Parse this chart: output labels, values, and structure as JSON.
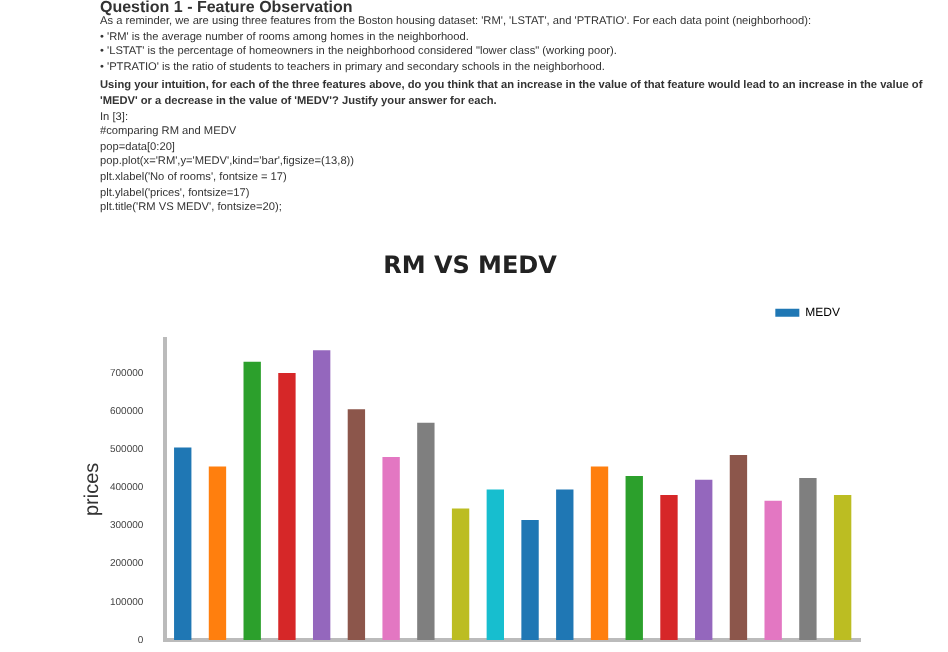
{
  "chart_data": {
    "type": "bar",
    "title": "RM VS MEDV",
    "ylabel": "prices",
    "annotations": [
      "Question 1 - Feature Observation",
      "As a reminder, we are using three features from the Boston housing dataset: 'RM', 'LSTAT', and 'PTRATIO'. For each data point (neighborhood):",
      "• 'RM' is the average number of rooms among homes in the neighborhood.",
      "• 'LSTAT' is the percentage of homeowners in the neighborhood considered \"lower class\" (working poor).",
      "• 'PTRATIO' is the ratio of students to teachers in primary and secondary schools in the neighborhood.",
      "Using your intuition, for each of the three features above, do you think that an increase in the value of that feature would lead to an increase in the value of 'MEDV' or a decrease in the value of 'MEDV'? Justify your answer for each.",
      "In [3]:",
      "#comparing RM and MEDV",
      "pop=data[0:20]",
      "pop.plot(x='RM',y='MEDV',kind='bar',figsize=(13,8))",
      "plt.xlabel('No of rooms', fontsize = 17)",
      "plt.ylabel('prices', fontsize=17)",
      "plt.title('RM VS MEDV', fontsize=20);"
    ],
    "categories": [
      null,
      null,
      null,
      null,
      null,
      null,
      null,
      null,
      null,
      null,
      null,
      null,
      null,
      null,
      null,
      null,
      null,
      null,
      null,
      null
    ],
    "series": [
      {
        "name": "MEDV",
        "color": "#1f77b4",
        "colors": [
          "#1f77b4",
          "#ff7f0e",
          "#2ca02c",
          "#d62728",
          "#9467bd",
          "#8c564b",
          "#e377c2",
          "#7f7f7f",
          "#bcbd22",
          "#17becf",
          "#1f77b4",
          "#1f77b4",
          "#ff7f0e",
          "#2ca02c",
          "#d62728",
          "#9467bd",
          "#8c564b",
          "#e377c2",
          "#7f7f7f",
          "#bcbd22"
        ],
        "values": [
          505000,
          455000,
          730000,
          700000,
          760000,
          605000,
          480000,
          570000,
          345000,
          395000,
          315000,
          395000,
          455000,
          430000,
          380000,
          420000,
          485000,
          365000,
          425000,
          380000
        ]
      }
    ],
    "ylim": [
      0,
      790000
    ],
    "yticks": [
      0,
      100000,
      200000,
      300000,
      400000,
      500000,
      600000,
      700000
    ],
    "legend": "top right",
    "tick_labels": "y",
    "grid": false
  }
}
